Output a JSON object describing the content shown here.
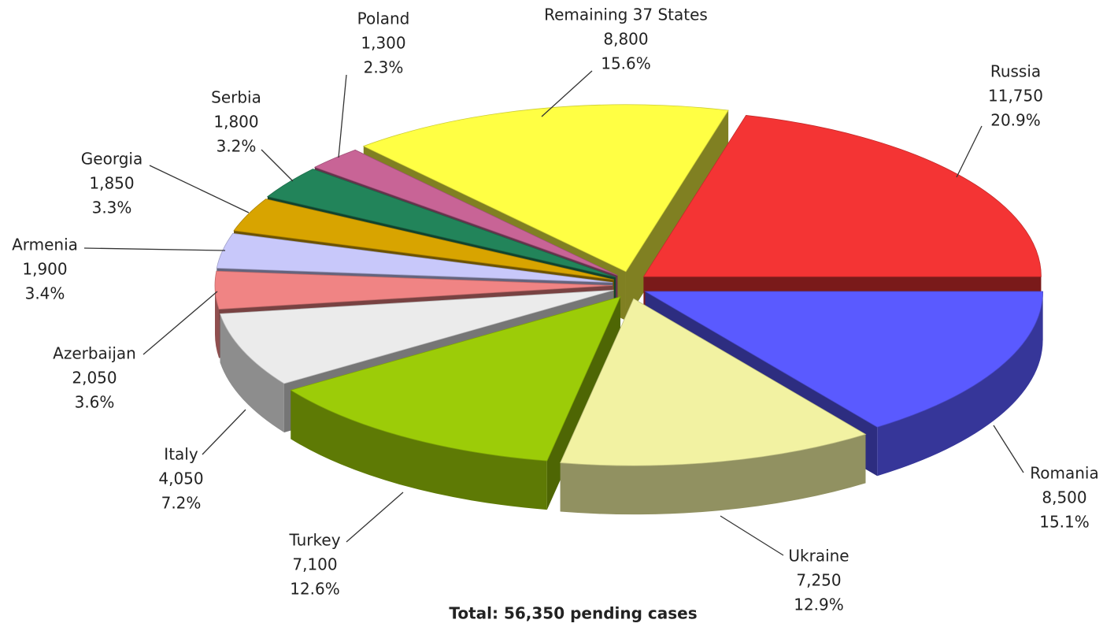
{
  "chart_data": {
    "type": "pie3d",
    "title": "Total: 56,350 pending cases",
    "categories": [
      "Russia",
      "Romania",
      "Ukraine",
      "Turkey",
      "Italy",
      "Azerbaijan",
      "Armenia",
      "Georgia",
      "Serbia",
      "Poland",
      "Remaining 37 States"
    ],
    "values": [
      11750,
      8500,
      7250,
      7100,
      4050,
      2050,
      1900,
      1850,
      1800,
      1300,
      8800
    ],
    "value_labels": [
      "11,750",
      "8,500",
      "7,250",
      "7,100",
      "4,050",
      "2,050",
      "1,900",
      "1,850",
      "1,800",
      "1,300",
      "8,800"
    ],
    "percent_labels": [
      "20.9%",
      "15.1%",
      "12.9%",
      "12.6%",
      "7.2%",
      "3.6%",
      "3.4%",
      "3.3%",
      "3.2%",
      "2.3%",
      "15.6%"
    ],
    "colors": [
      "#f43434",
      "#5a5aff",
      "#f2f2a2",
      "#9ccc08",
      "#ebebeb",
      "#f08484",
      "#c8c8fa",
      "#d8a400",
      "#22845a",
      "#c86496",
      "#ffff44"
    ]
  }
}
